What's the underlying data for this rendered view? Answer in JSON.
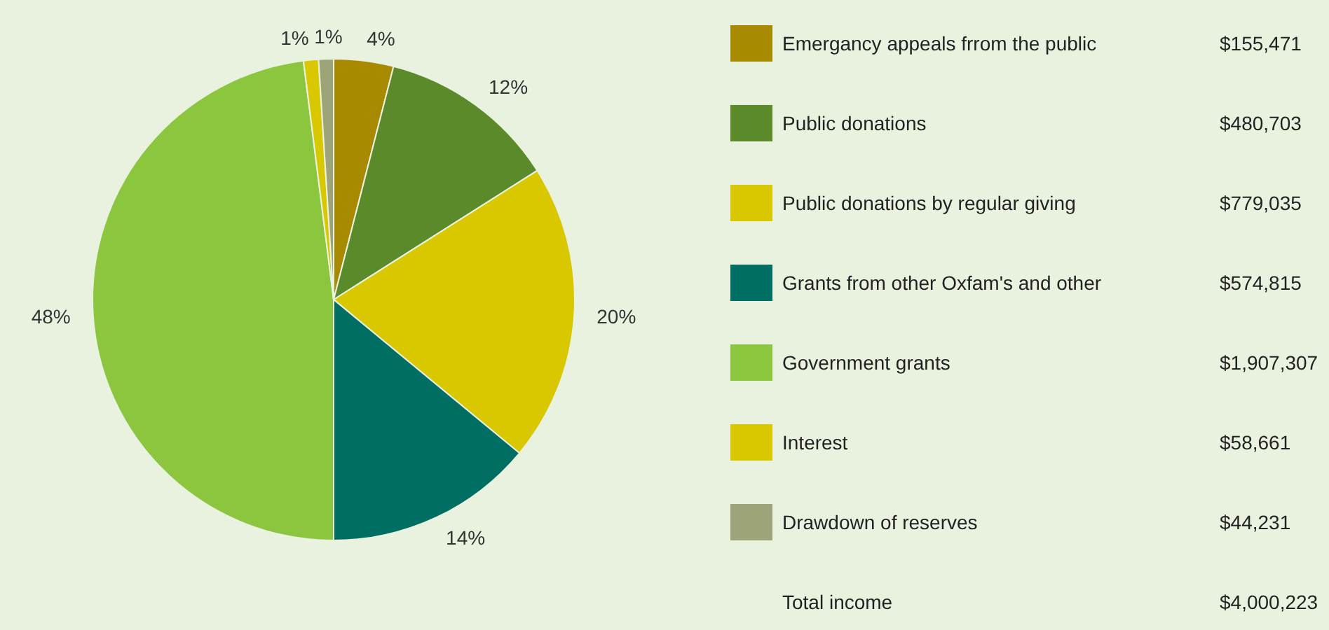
{
  "chart_data": {
    "type": "pie",
    "categories": [
      "Emergancy appeals frrom the public",
      "Public donations",
      "Public donations by regular giving",
      "Grants from other Oxfam's and other",
      "Government grants",
      "Interest",
      "Drawdown of reserves"
    ],
    "values": [
      4,
      12,
      20,
      14,
      48,
      1,
      1
    ],
    "value_labels": [
      "4%",
      "12%",
      "20%",
      "14%",
      "48%",
      "1%",
      "1%"
    ],
    "colors": [
      "#a88a00",
      "#5b8a2a",
      "#d9c800",
      "#006e63",
      "#8cc63f",
      "#d9c800",
      "#9ea47a"
    ],
    "annotations": [
      "$155,471",
      "$480,703",
      "$779,035",
      "$574,815",
      "$1,907,307",
      "$58,661",
      "$44,231",
      "Total income",
      "$4,000,223"
    ],
    "legend": "right"
  }
}
